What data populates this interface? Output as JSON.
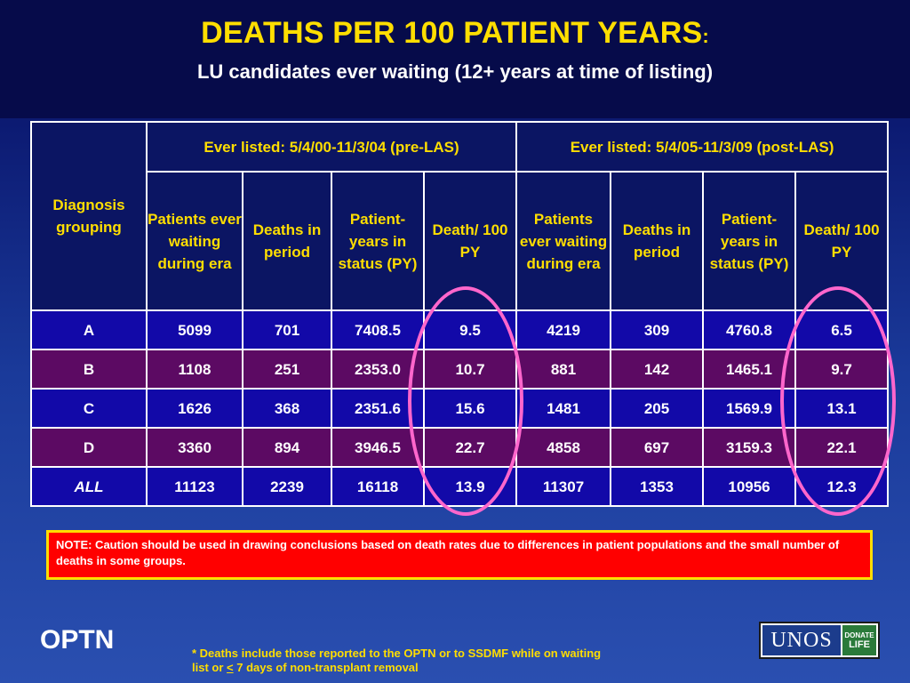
{
  "title": {
    "main": "DEATHS PER 100 PATIENT YEARS",
    "colon": ":",
    "subtitle": "LU candidates ever waiting (12+ years at time of listing)"
  },
  "table": {
    "diagnosis_header": "Diagnosis grouping",
    "group_headers": [
      "Ever listed: 5/4/00-11/3/04 (pre-LAS)",
      "Ever  listed: 5/4/05-11/3/09 (post-LAS)"
    ],
    "column_headers": [
      "Patients ever waiting during era",
      "Deaths in period",
      "Patient-years in status (PY)",
      "Death/ 100 PY",
      "Patients ever waiting during era",
      "Deaths in period",
      "Patient-years in status (PY)",
      "Death/ 100 PY"
    ],
    "rows": [
      {
        "label": "A",
        "values": [
          "5099",
          "701",
          "7408.5",
          "9.5",
          "4219",
          "309",
          "4760.8",
          "6.5"
        ]
      },
      {
        "label": "B",
        "values": [
          "1108",
          "251",
          "2353.0",
          "10.7",
          "881",
          "142",
          "1465.1",
          "9.7"
        ]
      },
      {
        "label": "C",
        "values": [
          "1626",
          "368",
          "2351.6",
          "15.6",
          "1481",
          "205",
          "1569.9",
          "13.1"
        ]
      },
      {
        "label": "D",
        "values": [
          "3360",
          "894",
          "3946.5",
          "22.7",
          "4858",
          "697",
          "3159.3",
          "22.1"
        ]
      },
      {
        "label": "ALL",
        "values": [
          "11123",
          "2239",
          "16118",
          "13.9",
          "11307",
          "1353",
          "10956",
          "12.3"
        ]
      }
    ]
  },
  "note": "NOTE: Caution should be used in drawing conclusions based on death rates due to differences in patient populations and the small number of deaths in some groups.",
  "footer": {
    "org": "OPTN",
    "footnote_line1": "* Deaths include those reported to the OPTN or to SSDMF while on waiting",
    "footnote_line2_pre": "list or ",
    "footnote_lte": "<",
    "footnote_line2_post": " 7 days of non-transplant removal",
    "logo_text": "UNOS",
    "logo_badge_1": "DONATE",
    "logo_badge_2": "LIFE"
  },
  "colors": {
    "title": "#ffde00",
    "header_bg": "#0b1563",
    "row_blue": "#1209a8",
    "row_purple": "#5c0a63",
    "highlight_ellipse": "#ff66cc",
    "note_bg": "#ff0000"
  }
}
